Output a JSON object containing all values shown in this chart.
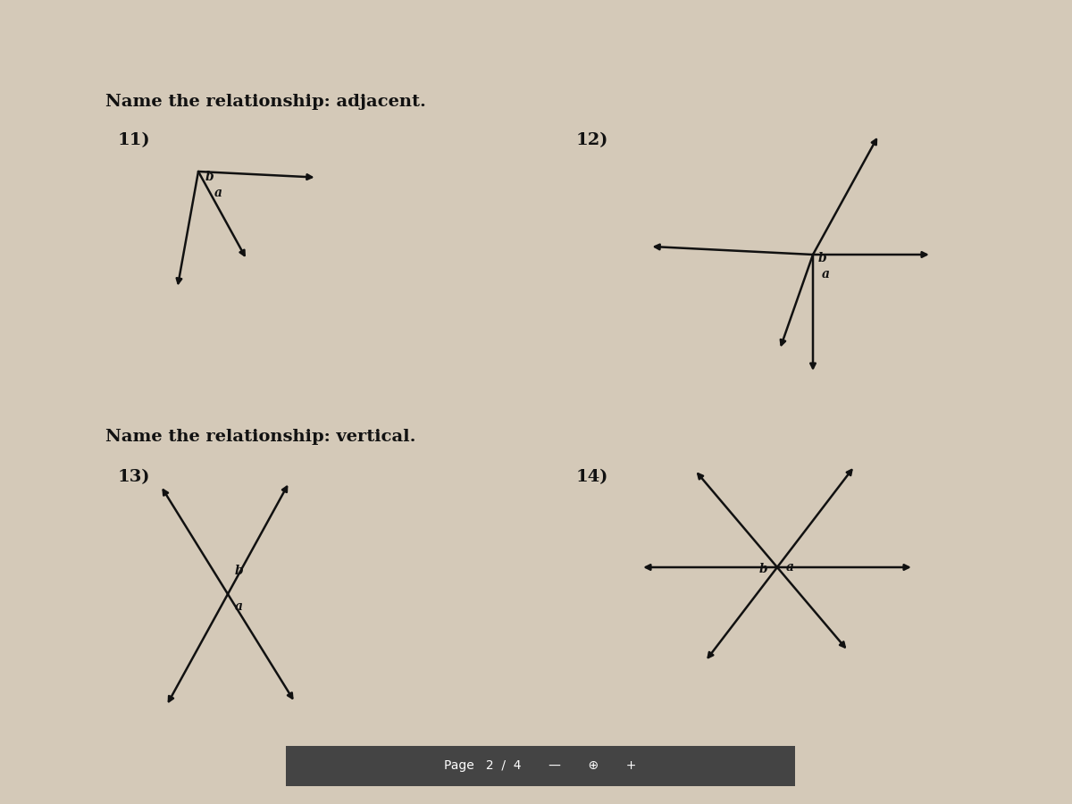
{
  "title_adjacent": "Name the relationship: adjacent.",
  "title_vertical": "Name the relationship: vertical.",
  "bg_color": "#d4c9b8",
  "text_color": "#111111",
  "line_color": "#111111",
  "title_fontsize": 14,
  "label_fontsize": 10,
  "number_fontsize": 14,
  "page_bar_color": "#444444",
  "page_text": "Page   2  /  4       —       ⊕       +"
}
